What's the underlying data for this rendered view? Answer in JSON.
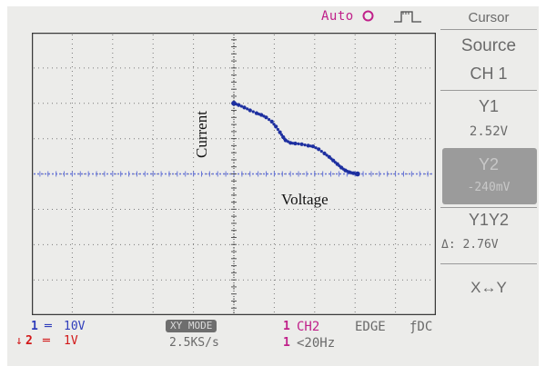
{
  "header": {
    "mode_label": "Auto",
    "mode_icon": "stop-circle-icon",
    "trigger_icon": "rising-edge-pulse-icon"
  },
  "plot": {
    "annotations": {
      "current": "Current",
      "voltage": "Voltage"
    },
    "colors": {
      "trace": "#1d2fa0",
      "axis": "#6a78d6",
      "grid": "#7a7a7a",
      "background": "#ececea"
    },
    "trace_points": [
      [
        0,
        0.0
      ],
      [
        0.06,
        -0.05
      ],
      [
        0.13,
        -0.12
      ],
      [
        0.2,
        -0.2
      ],
      [
        0.28,
        -0.28
      ],
      [
        0.34,
        -0.33
      ],
      [
        0.4,
        -0.4
      ],
      [
        0.47,
        -0.52
      ],
      [
        0.52,
        -0.66
      ],
      [
        0.57,
        -0.82
      ],
      [
        0.61,
        -0.96
      ],
      [
        0.64,
        -1.05
      ],
      [
        0.7,
        -1.12
      ],
      [
        0.76,
        -1.14
      ],
      [
        0.84,
        -1.16
      ],
      [
        0.92,
        -1.2
      ],
      [
        0.98,
        -1.22
      ],
      [
        1.05,
        -1.3
      ],
      [
        1.12,
        -1.42
      ],
      [
        1.18,
        -1.52
      ],
      [
        1.23,
        -1.62
      ],
      [
        1.28,
        -1.72
      ],
      [
        1.33,
        -1.82
      ],
      [
        1.38,
        -1.9
      ],
      [
        1.43,
        -1.95
      ],
      [
        1.48,
        -1.98
      ],
      [
        1.53,
        -2.0
      ]
    ]
  },
  "sidebar": {
    "title": "Cursor",
    "source_label": "Source",
    "source_value": "CH 1",
    "y1_label": "Y1",
    "y1_value": "2.52V",
    "y2_label": "Y2",
    "y2_value": "-240mV",
    "y1y2_label": "Y1Y2",
    "delta_value": "Δ: 2.76V",
    "xy_swap": "X↔Y"
  },
  "status": {
    "ch1_badge": "1",
    "ch1_eq": "═",
    "ch1_scale": "10V",
    "ch2_arrow": "↓",
    "ch2_badge": "2",
    "ch2_eq": "═",
    "ch2_scale": "1V",
    "xy_mode": "XY MODE",
    "sample_rate": "2.5KS/s",
    "trig_badge": "1",
    "trig_source": "CH2",
    "trig_type": "EDGE",
    "trig_coupling": "ƒDC",
    "trig2_badge": "1",
    "trig_filter": "<20Hz"
  }
}
